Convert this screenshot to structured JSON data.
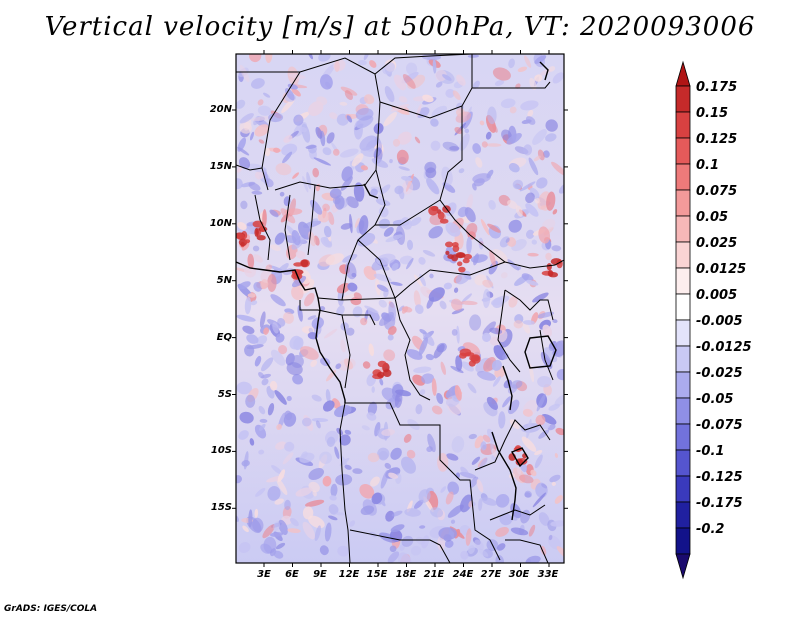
{
  "title": "Vertical velocity [m/s] at 500hPa, VT: 2020093006",
  "credit": "GrADS: IGES/COLA",
  "map": {
    "lat_labels": [
      "20N",
      "15N",
      "10N",
      "5N",
      "EQ",
      "5S",
      "10S",
      "15S"
    ],
    "lon_labels": [
      "3E",
      "6E",
      "9E",
      "12E",
      "15E",
      "18E",
      "21E",
      "24E",
      "27E",
      "30E",
      "33E"
    ]
  },
  "colorbar": {
    "labels": [
      "0.175",
      "0.15",
      "0.125",
      "0.1",
      "0.075",
      "0.05",
      "0.025",
      "0.0125",
      "0.005",
      "-0.005",
      "-0.0125",
      "-0.025",
      "-0.05",
      "-0.075",
      "-0.1",
      "-0.125",
      "-0.175",
      "-0.2"
    ],
    "colors": [
      "#b01515",
      "#c52a2a",
      "#d84141",
      "#e55a5a",
      "#ee7a7a",
      "#f39a9a",
      "#f7b8b8",
      "#fad4d4",
      "#fdeeee",
      "#ffffff",
      "#e3e3fb",
      "#c9c9f5",
      "#ababee",
      "#8f8fe6",
      "#7272dc",
      "#5555cf",
      "#3a3abd",
      "#2020a0",
      "#12128a",
      "#1a0a6e"
    ]
  }
}
